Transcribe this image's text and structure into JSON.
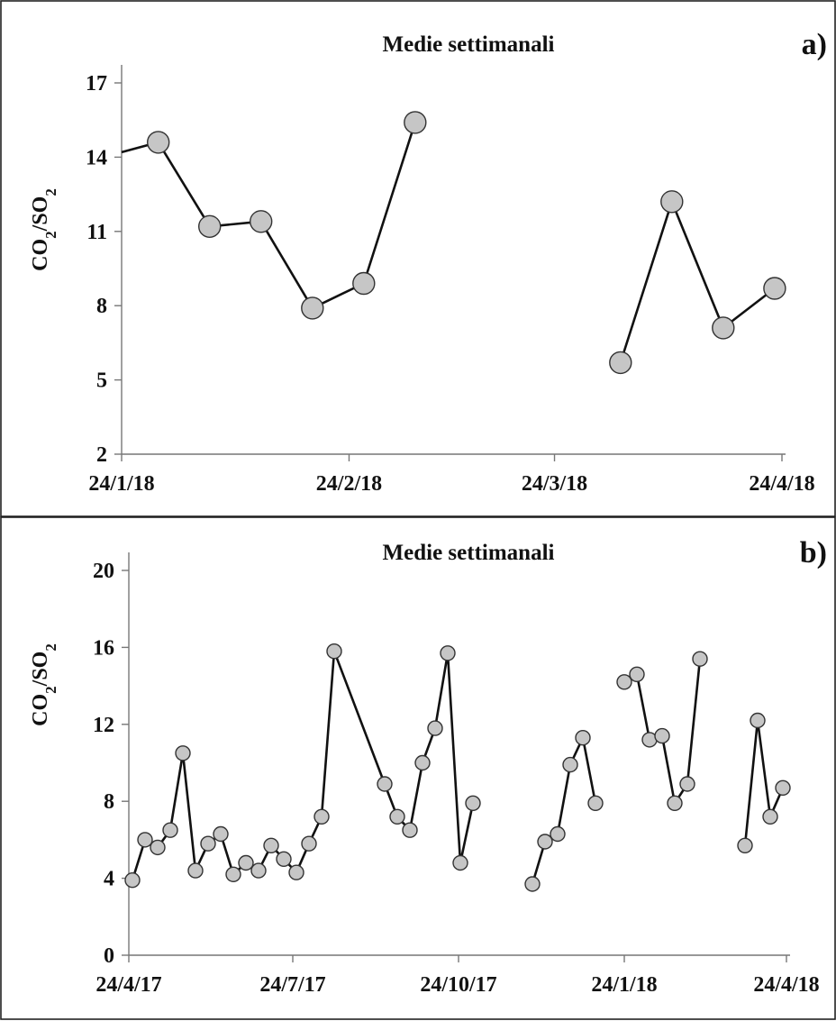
{
  "chart_data": [
    {
      "panel": "a)",
      "type": "line",
      "title": "Medie settimanali",
      "ylabel": "CO2/SO2",
      "ylim": [
        2,
        17
      ],
      "yticks": [
        2,
        5,
        8,
        11,
        14,
        17
      ],
      "xlim": [
        "2018-01-24",
        "2018-04-24"
      ],
      "xticks": [
        {
          "date": "2018-01-24",
          "label": "24/1/18"
        },
        {
          "date": "2018-02-24",
          "label": "24/2/18"
        },
        {
          "date": "2018-03-24",
          "label": "24/3/18"
        },
        {
          "date": "2018-04-24",
          "label": "24/4/18"
        }
      ],
      "grid": false,
      "segments": [
        [
          {
            "x": "2018-01-24",
            "y": 14.2,
            "marker": false
          },
          {
            "x": "2018-01-29",
            "y": 14.6
          },
          {
            "x": "2018-02-05",
            "y": 11.2
          },
          {
            "x": "2018-02-12",
            "y": 11.4
          },
          {
            "x": "2018-02-19",
            "y": 7.9
          },
          {
            "x": "2018-02-26",
            "y": 8.9
          },
          {
            "x": "2018-03-05",
            "y": 15.4
          }
        ],
        [
          {
            "x": "2018-04-02",
            "y": 5.7
          },
          {
            "x": "2018-04-09",
            "y": 12.2
          },
          {
            "x": "2018-04-16",
            "y": 7.1
          },
          {
            "x": "2018-04-23",
            "y": 8.7
          }
        ]
      ]
    },
    {
      "panel": "b)",
      "type": "line",
      "title": "Medie settimanali",
      "ylabel": "CO2/SO2",
      "ylim": [
        0,
        20
      ],
      "yticks": [
        0,
        4,
        8,
        12,
        16,
        20
      ],
      "xlim": [
        "2017-04-24",
        "2018-04-24"
      ],
      "xticks": [
        {
          "date": "2017-04-24",
          "label": "24/4/17"
        },
        {
          "date": "2017-07-24",
          "label": "24/7/17"
        },
        {
          "date": "2017-10-24",
          "label": "24/10/17"
        },
        {
          "date": "2018-01-24",
          "label": "24/1/18"
        },
        {
          "date": "2018-04-24",
          "label": "24/4/18"
        }
      ],
      "grid": false,
      "segments": [
        [
          {
            "x": "2017-04-26",
            "y": 3.9
          },
          {
            "x": "2017-05-03",
            "y": 6.0
          },
          {
            "x": "2017-05-10",
            "y": 5.6
          },
          {
            "x": "2017-05-17",
            "y": 6.5
          },
          {
            "x": "2017-05-24",
            "y": 10.5
          },
          {
            "x": "2017-05-31",
            "y": 4.4
          },
          {
            "x": "2017-06-07",
            "y": 5.8
          },
          {
            "x": "2017-06-14",
            "y": 6.3
          },
          {
            "x": "2017-06-21",
            "y": 4.2
          },
          {
            "x": "2017-06-28",
            "y": 4.8
          },
          {
            "x": "2017-07-05",
            "y": 4.4
          },
          {
            "x": "2017-07-12",
            "y": 5.7
          },
          {
            "x": "2017-07-19",
            "y": 5.0
          },
          {
            "x": "2017-07-26",
            "y": 4.3
          },
          {
            "x": "2017-08-02",
            "y": 5.8
          },
          {
            "x": "2017-08-09",
            "y": 7.2
          },
          {
            "x": "2017-08-16",
            "y": 15.8
          },
          {
            "x": "2017-09-13",
            "y": 8.9
          },
          {
            "x": "2017-09-20",
            "y": 7.2
          },
          {
            "x": "2017-09-27",
            "y": 6.5
          },
          {
            "x": "2017-10-04",
            "y": 10.0
          },
          {
            "x": "2017-10-11",
            "y": 11.8
          },
          {
            "x": "2017-10-18",
            "y": 15.7
          },
          {
            "x": "2017-10-25",
            "y": 4.8
          },
          {
            "x": "2017-11-01",
            "y": 7.9
          }
        ],
        [
          {
            "x": "2017-12-04",
            "y": 3.7
          },
          {
            "x": "2017-12-11",
            "y": 5.9
          },
          {
            "x": "2017-12-18",
            "y": 6.3
          },
          {
            "x": "2017-12-25",
            "y": 9.9
          },
          {
            "x": "2018-01-01",
            "y": 11.3
          },
          {
            "x": "2018-01-08",
            "y": 7.9
          }
        ],
        [
          {
            "x": "2018-01-24",
            "y": 14.2
          },
          {
            "x": "2018-01-31",
            "y": 14.6
          },
          {
            "x": "2018-02-07",
            "y": 11.2
          },
          {
            "x": "2018-02-14",
            "y": 11.4
          },
          {
            "x": "2018-02-21",
            "y": 7.9
          },
          {
            "x": "2018-02-28",
            "y": 8.9
          },
          {
            "x": "2018-03-07",
            "y": 15.4
          }
        ],
        [
          {
            "x": "2018-04-01",
            "y": 5.7
          },
          {
            "x": "2018-04-08",
            "y": 12.2
          },
          {
            "x": "2018-04-15",
            "y": 7.2
          },
          {
            "x": "2018-04-22",
            "y": 8.7
          }
        ]
      ]
    }
  ]
}
